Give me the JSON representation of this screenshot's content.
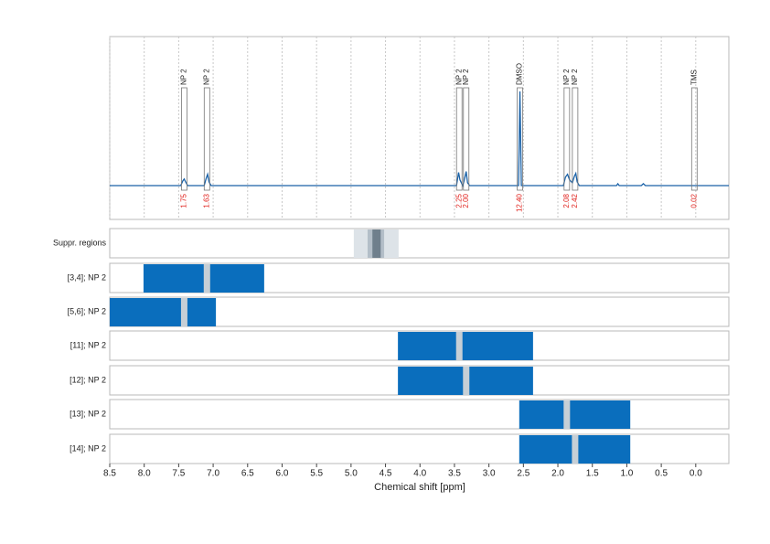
{
  "chart_data": {
    "type": "nmr",
    "xlabel": "Chemical shift [ppm]",
    "xlim": [
      8.5,
      -0.48
    ],
    "xticks": [
      8.5,
      {
        "value": 8,
        "label": "8.0"
      },
      7.5,
      {
        "value": 7,
        "label": "7.0"
      },
      6.5,
      {
        "value": 6,
        "label": "6.0"
      },
      5.5,
      {
        "value": 5,
        "label": "5.0"
      },
      4.5,
      {
        "value": 4,
        "label": "4.0"
      },
      3.5,
      {
        "value": 3,
        "label": "3.0"
      },
      2.5,
      {
        "value": 2,
        "label": "2.0"
      },
      1.5,
      {
        "value": 1,
        "label": "1.0"
      },
      0.5,
      {
        "value": 0,
        "label": "0.0"
      }
    ],
    "grid": true,
    "spectrum": {
      "color": "#1a62a8",
      "x": [
        8.5,
        7.47,
        7.44,
        7.42,
        7.4,
        7.37,
        7.13,
        7.1,
        7.08,
        7.06,
        7.03,
        3.47,
        3.44,
        3.42,
        3.38,
        3.36,
        3.33,
        3.31,
        3.28,
        2.57,
        2.55,
        2.53,
        1.92,
        1.89,
        1.86,
        1.83,
        1.79,
        1.76,
        1.74,
        1.72,
        1.69,
        1.15,
        1.13,
        1.11,
        0.79,
        0.76,
        0.73,
        -0.48
      ],
      "values": [
        0,
        0,
        5,
        7,
        4,
        0,
        0,
        8,
        12,
        4,
        0,
        0,
        14,
        6,
        0,
        5,
        15,
        3,
        0,
        0,
        100,
        0,
        0,
        9,
        12,
        6,
        3,
        10,
        13,
        4,
        0,
        0,
        2,
        0,
        0,
        2,
        0,
        0
      ]
    },
    "peaks": {
      "labels": [
        "NP 2",
        "NP 2",
        "NP 2",
        "NP 2",
        "DMSO",
        "NP 2",
        "NP 2",
        "TMS"
      ],
      "x": [
        7.42,
        7.09,
        3.43,
        3.33,
        2.55,
        1.87,
        1.75,
        0.02
      ],
      "values": [
        1.75,
        1.63,
        2.25,
        2,
        12.4,
        2.08,
        2.42,
        0.02
      ],
      "value_labels": [
        "1.75",
        "1.63",
        "2.25",
        "2.00",
        "12.40",
        "2.08",
        "2.42",
        "0.02"
      ],
      "color": "#e0201b"
    },
    "suppression": {
      "label": "Suppr. regions",
      "bands": [
        {
          "from": 4.96,
          "to": 4.31,
          "color": "#dde3e8"
        },
        {
          "from": 4.76,
          "to": 4.52,
          "color": "#b3bec8"
        },
        {
          "from": 4.69,
          "to": 4.57,
          "color": "#6f7f8c"
        }
      ]
    },
    "regions": [
      {
        "label": "[3,4]; NP 2",
        "from": 8.01,
        "to": 6.26,
        "center": 7.09
      },
      {
        "label": "[5,6]; NP 2",
        "from": 8.5,
        "to": 6.96,
        "center": 7.42
      },
      {
        "label": "[11]; NP 2",
        "from": 4.32,
        "to": 2.36,
        "center": 3.43
      },
      {
        "label": "[12]; NP 2",
        "from": 4.32,
        "to": 2.36,
        "center": 3.33
      },
      {
        "label": "[13]; NP 2",
        "from": 2.56,
        "to": 0.95,
        "center": 1.87
      },
      {
        "label": "[14]; NP 2",
        "from": 2.56,
        "to": 0.95,
        "center": 1.75
      }
    ],
    "region_color": "#0a6ebd",
    "center_color": "#c6cfd6"
  }
}
